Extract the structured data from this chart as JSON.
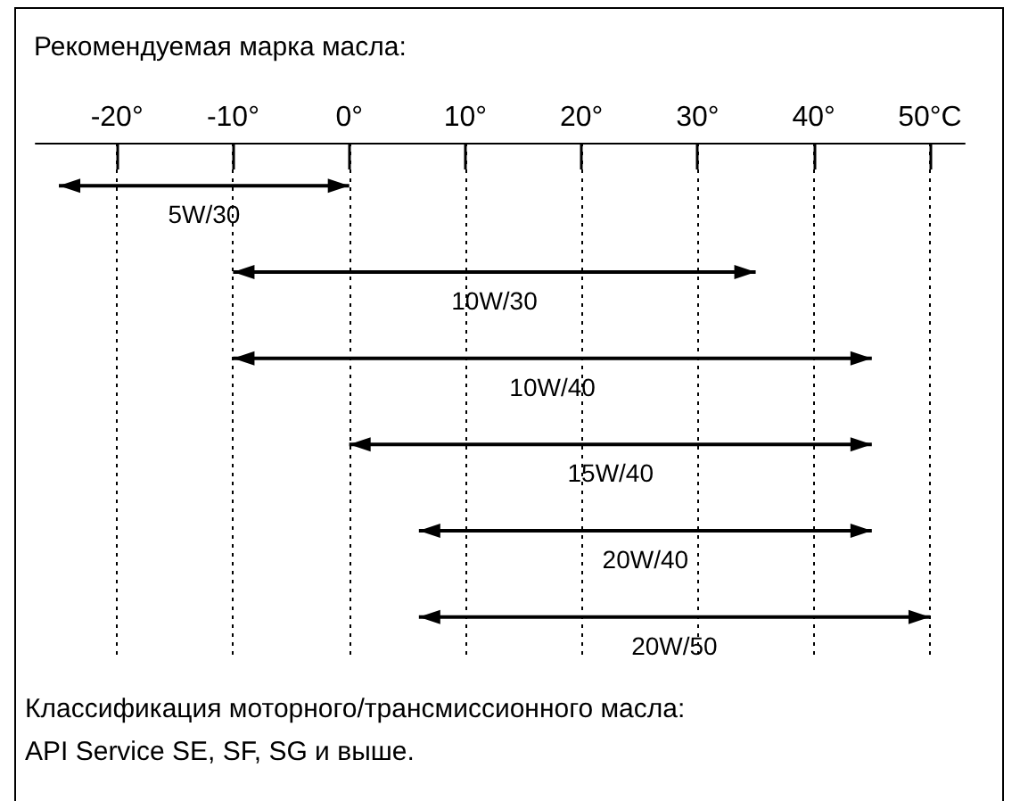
{
  "chart_data": {
    "type": "bar",
    "orientation": "horizontal",
    "title": "Рекомендуемая марка масла:",
    "categories": [
      "5W/30",
      "10W/30",
      "10W/40",
      "15W/40",
      "20W/40",
      "20W/50"
    ],
    "base": [
      -25,
      -10,
      -10,
      0,
      6,
      6
    ],
    "values": [
      25,
      45,
      55,
      45,
      39,
      44
    ],
    "color": "#000000",
    "xlim": [
      -27,
      53
    ],
    "xticks": [
      {
        "value": -20,
        "label": "-20°"
      },
      {
        "value": -10,
        "label": "-10°"
      },
      {
        "value": 0,
        "label": "0°"
      },
      {
        "value": 10,
        "label": "10°"
      },
      {
        "value": 20,
        "label": "20°"
      },
      {
        "value": 30,
        "label": "30°"
      },
      {
        "value": 40,
        "label": "40°"
      },
      {
        "value": 50,
        "label": "50°C"
      }
    ],
    "grid": "x",
    "annotations": [
      "Классификация моторного/трансмиссионного масла:",
      "API Service SE, SF, SG и выше."
    ]
  }
}
